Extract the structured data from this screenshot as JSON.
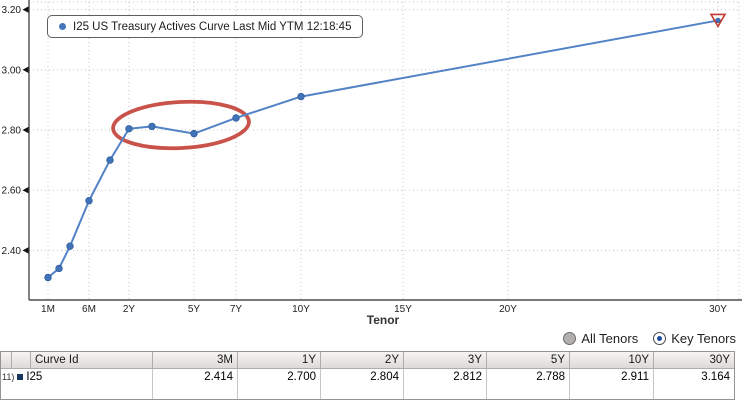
{
  "chart": {
    "legend_label": "I25 US Treasury Actives Curve Last Mid YTM 12:18:45",
    "x_axis_label": "Tenor"
  },
  "chart_data": {
    "type": "line",
    "title": "I25 US Treasury Actives Curve Last Mid YTM 12:18:45",
    "xlabel": "Tenor",
    "ylabel": "",
    "x_ticks": [
      "1M",
      "6M",
      "2Y",
      "5Y",
      "7Y",
      "10Y",
      "15Y",
      "20Y",
      "30Y"
    ],
    "y_ticks": [
      "3.20",
      "3.00",
      "2.80",
      "2.60",
      "2.40"
    ],
    "ylim": [
      2.23,
      3.22
    ],
    "grid": true,
    "legend_position": "top-left",
    "series": [
      {
        "name": "I25",
        "x": [
          "1M",
          "2M",
          "3M",
          "6M",
          "1Y",
          "2Y",
          "3Y",
          "5Y",
          "7Y",
          "10Y",
          "30Y"
        ],
        "values": [
          2.31,
          2.34,
          2.414,
          2.565,
          2.7,
          2.804,
          2.812,
          2.788,
          2.84,
          2.911,
          3.164
        ]
      }
    ],
    "annotations": [
      {
        "type": "ellipse",
        "note": "red oval circling the 2Y-7Y hump",
        "x_range": [
          "2Y",
          "7Y"
        ],
        "y_center": 2.8
      },
      {
        "type": "triangle-marker",
        "note": "red open down-triangle on last point",
        "at_x": "30Y",
        "at_value": 3.164
      }
    ]
  },
  "controls": {
    "all_tenors_label": "All Tenors",
    "key_tenors_label": "Key Tenors",
    "selected": "Key Tenors"
  },
  "table": {
    "row_index": "11)",
    "headers": [
      "Curve Id",
      "3M",
      "1Y",
      "2Y",
      "3Y",
      "5Y",
      "10Y",
      "30Y"
    ],
    "rows": [
      {
        "curve_id": "I25",
        "values": [
          "2.414",
          "2.700",
          "2.804",
          "2.812",
          "2.788",
          "2.911",
          "3.164"
        ]
      }
    ]
  },
  "colors": {
    "line": "#5383c6",
    "marker": "#4173b9",
    "marker_edge": "#335f9f",
    "annotation_red": "#c23b31",
    "grid": "#c4c4c4",
    "axis": "#4d4d4d",
    "radio_selected_dot": "#1d4e9e"
  }
}
